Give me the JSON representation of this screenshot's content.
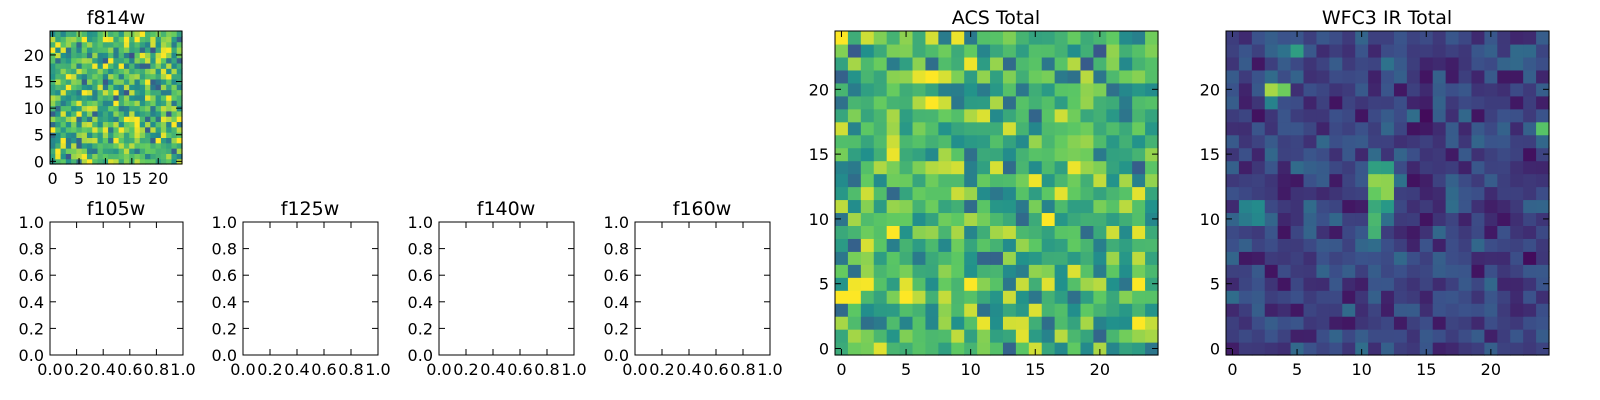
{
  "figure": {
    "background": "#ffffff",
    "colormap": [
      "#440154",
      "#3b528b",
      "#21918c",
      "#5ec962",
      "#fde725"
    ]
  },
  "chart_data": [
    {
      "id": "f814w",
      "type": "heatmap",
      "title": "f814w",
      "xlim": [
        -0.5,
        24.5
      ],
      "ylim": [
        -0.5,
        24.5
      ],
      "xticks": [
        0,
        5,
        10,
        15,
        20
      ],
      "yticks": [
        0,
        5,
        10,
        15,
        20
      ],
      "xtick_labels": [
        "0",
        "5",
        "10",
        "15",
        "20"
      ],
      "ytick_labels": [
        "0",
        "5",
        "10",
        "15",
        "20"
      ],
      "grid": false,
      "size": [
        25,
        25
      ],
      "field": {
        "kind": "noise",
        "seed": 814,
        "base": 0.68,
        "spread": 0.45,
        "sources": []
      }
    },
    {
      "id": "f105w",
      "type": "empty",
      "title": "f105w",
      "xlim": [
        0,
        1
      ],
      "ylim": [
        0,
        1
      ],
      "xticks": [
        0,
        0.2,
        0.4,
        0.6,
        0.8,
        1.0
      ],
      "yticks": [
        0,
        0.2,
        0.4,
        0.6,
        0.8,
        1.0
      ],
      "xtick_labels": [
        "0.0",
        "0.2",
        "0.4",
        "0.6",
        "0.8",
        "1.0"
      ],
      "ytick_labels": [
        "0.0",
        "0.2",
        "0.4",
        "0.6",
        "0.8",
        "1.0"
      ]
    },
    {
      "id": "f125w",
      "type": "empty",
      "title": "f125w",
      "xlim": [
        0,
        1
      ],
      "ylim": [
        0,
        1
      ],
      "xticks": [
        0,
        0.2,
        0.4,
        0.6,
        0.8,
        1.0
      ],
      "yticks": [
        0,
        0.2,
        0.4,
        0.6,
        0.8,
        1.0
      ],
      "xtick_labels": [
        "0.0",
        "0.2",
        "0.4",
        "0.6",
        "0.8",
        "1.0"
      ],
      "ytick_labels": [
        "0.0",
        "0.2",
        "0.4",
        "0.6",
        "0.8",
        "1.0"
      ]
    },
    {
      "id": "f140w",
      "type": "empty",
      "title": "f140w",
      "xlim": [
        0,
        1
      ],
      "ylim": [
        0,
        1
      ],
      "xticks": [
        0,
        0.2,
        0.4,
        0.6,
        0.8,
        1.0
      ],
      "yticks": [
        0,
        0.2,
        0.4,
        0.6,
        0.8,
        1.0
      ],
      "xtick_labels": [
        "0.0",
        "0.2",
        "0.4",
        "0.6",
        "0.8",
        "1.0"
      ],
      "ytick_labels": [
        "0.0",
        "0.2",
        "0.4",
        "0.6",
        "0.8",
        "1.0"
      ]
    },
    {
      "id": "f160w",
      "type": "empty",
      "title": "f160w",
      "xlim": [
        0,
        1
      ],
      "ylim": [
        0,
        1
      ],
      "xticks": [
        0,
        0.2,
        0.4,
        0.6,
        0.8,
        1.0
      ],
      "yticks": [
        0,
        0.2,
        0.4,
        0.6,
        0.8,
        1.0
      ],
      "xtick_labels": [
        "0.0",
        "0.2",
        "0.4",
        "0.6",
        "0.8",
        "1.0"
      ],
      "ytick_labels": [
        "0.0",
        "0.2",
        "0.4",
        "0.6",
        "0.8",
        "1.0"
      ]
    },
    {
      "id": "acs-total",
      "type": "heatmap",
      "title": "ACS Total",
      "xlim": [
        -0.5,
        24.5
      ],
      "ylim": [
        -0.5,
        24.5
      ],
      "xticks": [
        0,
        5,
        10,
        15,
        20
      ],
      "yticks": [
        0,
        5,
        10,
        15,
        20
      ],
      "xtick_labels": [
        "0",
        "5",
        "10",
        "15",
        "20"
      ],
      "ytick_labels": [
        "0",
        "5",
        "10",
        "15",
        "20"
      ],
      "grid": false,
      "size": [
        25,
        25
      ],
      "field": {
        "kind": "noise",
        "seed": 2024,
        "base": 0.66,
        "spread": 0.42,
        "sources": []
      }
    },
    {
      "id": "wfc3-ir-total",
      "type": "heatmap",
      "title": "WFC3 IR Total",
      "xlim": [
        -0.5,
        24.5
      ],
      "ylim": [
        -0.5,
        24.5
      ],
      "xticks": [
        0,
        5,
        10,
        15,
        20
      ],
      "yticks": [
        0,
        5,
        10,
        15,
        20
      ],
      "xtick_labels": [
        "0",
        "5",
        "10",
        "15",
        "20"
      ],
      "ytick_labels": [
        "0",
        "5",
        "10",
        "15",
        "20"
      ],
      "grid": false,
      "size": [
        25,
        25
      ],
      "field": {
        "kind": "noise",
        "seed": 31,
        "base": 0.2,
        "spread": 0.17,
        "sources": [
          {
            "x": 11.5,
            "y": 12.5,
            "amp": 0.9,
            "sx": 0.6,
            "sy": 1.3
          },
          {
            "x": 11.0,
            "y": 9.5,
            "amp": 0.45,
            "sx": 0.4,
            "sy": 1.2
          },
          {
            "x": 3.5,
            "y": 20.0,
            "amp": 0.9,
            "sx": 0.6,
            "sy": 0.6
          },
          {
            "x": 4.5,
            "y": 23.0,
            "amp": 0.5,
            "sx": 0.4,
            "sy": 0.4
          },
          {
            "x": 12.5,
            "y": 21.5,
            "amp": 0.45,
            "sx": 0.6,
            "sy": 0.5
          },
          {
            "x": 1.5,
            "y": 10.5,
            "amp": 0.5,
            "sx": 0.5,
            "sy": 0.7
          },
          {
            "x": 24.0,
            "y": 17.0,
            "amp": 0.5,
            "sx": 0.4,
            "sy": 0.5
          }
        ]
      }
    }
  ]
}
